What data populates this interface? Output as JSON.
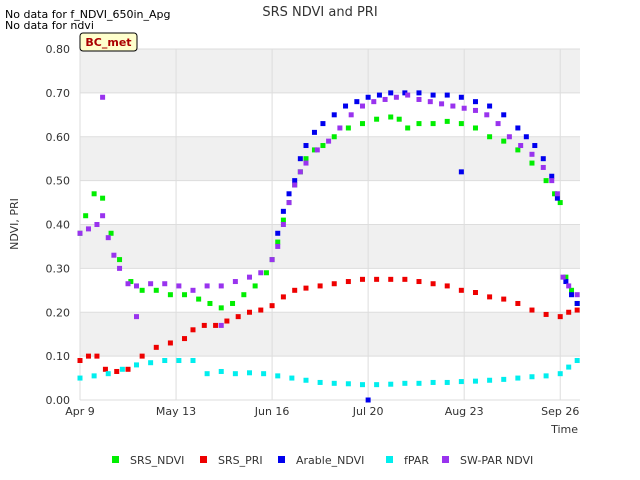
{
  "notes": [
    "No data for f_NDVI_650in_Apg",
    "No data for ndvi"
  ],
  "site_badge": "BC_met",
  "chart_data": {
    "type": "scatter",
    "title": "SRS NDVI and PRI",
    "xlabel": "Time",
    "ylabel": "NDVI, PRI",
    "ylim": [
      0.0,
      0.8
    ],
    "y_ticks": [
      "0.00",
      "0.10",
      "0.20",
      "0.30",
      "0.40",
      "0.50",
      "0.60",
      "0.70",
      "0.80"
    ],
    "x_tick_labels": [
      "Apr 9",
      "May 13",
      "Jun 16",
      "Jul 20",
      "Aug 23",
      "Sep 26"
    ],
    "x_tick_days": [
      0,
      34,
      68,
      102,
      136,
      170
    ],
    "xlim_days": [
      0,
      177
    ],
    "grid": true,
    "legend_position": "bottom",
    "series": [
      {
        "name": "SRS_NDVI",
        "color": "#00ee00",
        "points": [
          [
            0,
            0.38
          ],
          [
            2,
            0.42
          ],
          [
            5,
            0.47
          ],
          [
            8,
            0.46
          ],
          [
            11,
            0.38
          ],
          [
            14,
            0.32
          ],
          [
            18,
            0.27
          ],
          [
            22,
            0.25
          ],
          [
            27,
            0.25
          ],
          [
            32,
            0.24
          ],
          [
            37,
            0.24
          ],
          [
            42,
            0.23
          ],
          [
            46,
            0.22
          ],
          [
            50,
            0.21
          ],
          [
            54,
            0.22
          ],
          [
            58,
            0.24
          ],
          [
            62,
            0.26
          ],
          [
            66,
            0.29
          ],
          [
            68,
            0.32
          ],
          [
            70,
            0.36
          ],
          [
            72,
            0.41
          ],
          [
            74,
            0.45
          ],
          [
            76,
            0.49
          ],
          [
            78,
            0.52
          ],
          [
            80,
            0.55
          ],
          [
            83,
            0.57
          ],
          [
            86,
            0.58
          ],
          [
            90,
            0.6
          ],
          [
            95,
            0.62
          ],
          [
            100,
            0.63
          ],
          [
            105,
            0.64
          ],
          [
            110,
            0.645
          ],
          [
            113,
            0.64
          ],
          [
            116,
            0.62
          ],
          [
            120,
            0.63
          ],
          [
            125,
            0.63
          ],
          [
            130,
            0.635
          ],
          [
            135,
            0.63
          ],
          [
            140,
            0.62
          ],
          [
            145,
            0.6
          ],
          [
            150,
            0.59
          ],
          [
            155,
            0.57
          ],
          [
            160,
            0.54
          ],
          [
            165,
            0.5
          ],
          [
            168,
            0.47
          ],
          [
            170,
            0.45
          ],
          [
            172,
            0.28
          ],
          [
            174,
            0.25
          ],
          [
            176,
            0.22
          ]
        ]
      },
      {
        "name": "SRS_PRI",
        "color": "#ee0000",
        "points": [
          [
            0,
            0.09
          ],
          [
            3,
            0.1
          ],
          [
            6,
            0.1
          ],
          [
            9,
            0.07
          ],
          [
            13,
            0.065
          ],
          [
            17,
            0.07
          ],
          [
            22,
            0.1
          ],
          [
            27,
            0.12
          ],
          [
            32,
            0.13
          ],
          [
            37,
            0.14
          ],
          [
            40,
            0.16
          ],
          [
            44,
            0.17
          ],
          [
            48,
            0.17
          ],
          [
            52,
            0.18
          ],
          [
            56,
            0.19
          ],
          [
            60,
            0.2
          ],
          [
            64,
            0.205
          ],
          [
            68,
            0.215
          ],
          [
            72,
            0.235
          ],
          [
            76,
            0.25
          ],
          [
            80,
            0.255
          ],
          [
            85,
            0.26
          ],
          [
            90,
            0.265
          ],
          [
            95,
            0.27
          ],
          [
            100,
            0.275
          ],
          [
            105,
            0.275
          ],
          [
            110,
            0.275
          ],
          [
            115,
            0.275
          ],
          [
            120,
            0.27
          ],
          [
            125,
            0.265
          ],
          [
            130,
            0.26
          ],
          [
            135,
            0.25
          ],
          [
            140,
            0.245
          ],
          [
            145,
            0.235
          ],
          [
            150,
            0.23
          ],
          [
            155,
            0.22
          ],
          [
            160,
            0.205
          ],
          [
            165,
            0.195
          ],
          [
            170,
            0.19
          ],
          [
            173,
            0.2
          ],
          [
            176,
            0.205
          ]
        ]
      },
      {
        "name": "Arable_NDVI",
        "color": "#0000ee",
        "points": [
          [
            70,
            0.38
          ],
          [
            72,
            0.43
          ],
          [
            74,
            0.47
          ],
          [
            76,
            0.5
          ],
          [
            78,
            0.55
          ],
          [
            80,
            0.58
          ],
          [
            83,
            0.61
          ],
          [
            86,
            0.63
          ],
          [
            90,
            0.65
          ],
          [
            94,
            0.67
          ],
          [
            98,
            0.68
          ],
          [
            102,
            0.69
          ],
          [
            106,
            0.695
          ],
          [
            110,
            0.7
          ],
          [
            115,
            0.7
          ],
          [
            120,
            0.7
          ],
          [
            125,
            0.695
          ],
          [
            130,
            0.695
          ],
          [
            135,
            0.69
          ],
          [
            140,
            0.68
          ],
          [
            145,
            0.67
          ],
          [
            150,
            0.65
          ],
          [
            155,
            0.62
          ],
          [
            158,
            0.6
          ],
          [
            161,
            0.58
          ],
          [
            164,
            0.55
          ],
          [
            167,
            0.51
          ],
          [
            169,
            0.46
          ],
          [
            172,
            0.27
          ],
          [
            174,
            0.24
          ],
          [
            176,
            0.22
          ],
          [
            135,
            0.52
          ],
          [
            102,
            0.0
          ]
        ]
      },
      {
        "name": "fPAR",
        "color": "#00eeee",
        "points": [
          [
            0,
            0.05
          ],
          [
            5,
            0.055
          ],
          [
            10,
            0.06
          ],
          [
            15,
            0.07
          ],
          [
            20,
            0.08
          ],
          [
            25,
            0.085
          ],
          [
            30,
            0.09
          ],
          [
            35,
            0.09
          ],
          [
            40,
            0.09
          ],
          [
            45,
            0.06
          ],
          [
            50,
            0.065
          ],
          [
            55,
            0.06
          ],
          [
            60,
            0.062
          ],
          [
            65,
            0.06
          ],
          [
            70,
            0.055
          ],
          [
            75,
            0.05
          ],
          [
            80,
            0.045
          ],
          [
            85,
            0.04
          ],
          [
            90,
            0.038
          ],
          [
            95,
            0.037
          ],
          [
            100,
            0.035
          ],
          [
            105,
            0.035
          ],
          [
            110,
            0.036
          ],
          [
            115,
            0.038
          ],
          [
            120,
            0.038
          ],
          [
            125,
            0.04
          ],
          [
            130,
            0.04
          ],
          [
            135,
            0.042
          ],
          [
            140,
            0.043
          ],
          [
            145,
            0.045
          ],
          [
            150,
            0.047
          ],
          [
            155,
            0.05
          ],
          [
            160,
            0.053
          ],
          [
            165,
            0.055
          ],
          [
            170,
            0.06
          ],
          [
            173,
            0.075
          ],
          [
            176,
            0.09
          ]
        ]
      },
      {
        "name": "SW-PAR NDVI",
        "color": "#9933ee",
        "points": [
          [
            0,
            0.38
          ],
          [
            3,
            0.39
          ],
          [
            6,
            0.4
          ],
          [
            8,
            0.42
          ],
          [
            10,
            0.37
          ],
          [
            12,
            0.33
          ],
          [
            14,
            0.3
          ],
          [
            17,
            0.265
          ],
          [
            20,
            0.26
          ],
          [
            25,
            0.265
          ],
          [
            30,
            0.265
          ],
          [
            35,
            0.26
          ],
          [
            40,
            0.25
          ],
          [
            45,
            0.26
          ],
          [
            50,
            0.26
          ],
          [
            55,
            0.27
          ],
          [
            60,
            0.28
          ],
          [
            64,
            0.29
          ],
          [
            68,
            0.32
          ],
          [
            70,
            0.35
          ],
          [
            72,
            0.4
          ],
          [
            74,
            0.45
          ],
          [
            76,
            0.49
          ],
          [
            78,
            0.52
          ],
          [
            80,
            0.54
          ],
          [
            84,
            0.57
          ],
          [
            88,
            0.59
          ],
          [
            92,
            0.62
          ],
          [
            96,
            0.65
          ],
          [
            100,
            0.67
          ],
          [
            104,
            0.68
          ],
          [
            108,
            0.685
          ],
          [
            112,
            0.69
          ],
          [
            116,
            0.695
          ],
          [
            120,
            0.685
          ],
          [
            124,
            0.68
          ],
          [
            128,
            0.675
          ],
          [
            132,
            0.67
          ],
          [
            136,
            0.665
          ],
          [
            140,
            0.66
          ],
          [
            144,
            0.65
          ],
          [
            148,
            0.63
          ],
          [
            152,
            0.6
          ],
          [
            156,
            0.58
          ],
          [
            160,
            0.56
          ],
          [
            164,
            0.53
          ],
          [
            167,
            0.5
          ],
          [
            169,
            0.47
          ],
          [
            171,
            0.28
          ],
          [
            173,
            0.26
          ],
          [
            176,
            0.24
          ],
          [
            8,
            0.69
          ],
          [
            20,
            0.19
          ],
          [
            50,
            0.17
          ]
        ]
      }
    ]
  }
}
